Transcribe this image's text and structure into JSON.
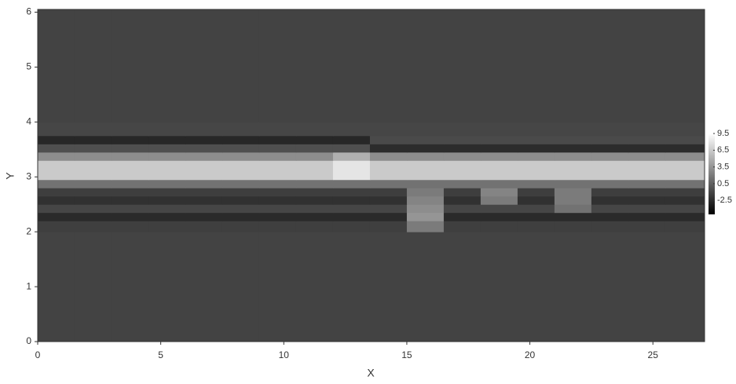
{
  "chart_data": {
    "type": "heatmap",
    "x_label": "X",
    "y_label": "Y",
    "xlim": [
      0,
      27.1
    ],
    "ylim": [
      0,
      6.05
    ],
    "xticks": [
      0,
      5,
      10,
      15,
      20,
      25
    ],
    "yticks": [
      0,
      1,
      2,
      3,
      4,
      5,
      6
    ],
    "x_edges": [
      0,
      1.5,
      3,
      4.5,
      6,
      7.5,
      9,
      10.5,
      12,
      13.5,
      15,
      16.5,
      18,
      19.5,
      21,
      22.5,
      24,
      25.5,
      27.1
    ],
    "y_edges": [
      0,
      2.0,
      2.2,
      2.35,
      2.5,
      2.65,
      2.8,
      2.95,
      3.3,
      3.45,
      3.6,
      3.75,
      4.0,
      6.05
    ],
    "colormap": "gray",
    "clim": [
      -5,
      9.5
    ],
    "colorbar_ticks": [
      9.5,
      6.5,
      3.5,
      0.5,
      -2.5
    ],
    "z": [
      [
        -1.2,
        -1.2,
        -1.2,
        -1.2,
        -1.2,
        -1.2,
        -1.2,
        -1.2,
        -1.2,
        -1.2,
        -1.2,
        -1.2,
        -1.2,
        -1.2,
        -1.2,
        -1.2,
        -1.2,
        -1.2
      ],
      [
        -1.4,
        -1.4,
        -1.4,
        -1.4,
        -1.4,
        -1.4,
        -1.4,
        -1.4,
        -1.4,
        -1.4,
        2.0,
        -1.4,
        -1.4,
        -1.4,
        -1.4,
        -1.4,
        -1.4,
        -1.4
      ],
      [
        -2.6,
        -2.6,
        -2.6,
        -2.6,
        -2.6,
        -2.6,
        -2.6,
        -2.6,
        -2.6,
        -2.6,
        3.5,
        -2.6,
        -2.6,
        -2.6,
        -2.6,
        -2.6,
        -2.6,
        -2.6
      ],
      [
        -1.0,
        -1.0,
        -1.0,
        -1.0,
        -1.0,
        -1.0,
        -1.0,
        -1.0,
        -1.0,
        -1.0,
        3.0,
        -1.0,
        -1.0,
        -1.0,
        1.5,
        -1.0,
        -1.0,
        -1.0
      ],
      [
        -2.2,
        -2.2,
        -2.2,
        -2.2,
        -2.2,
        -2.2,
        -2.2,
        -2.2,
        -2.2,
        -2.2,
        2.5,
        -2.2,
        2.0,
        -2.2,
        2.0,
        -2.2,
        -2.2,
        -2.2
      ],
      [
        -1.5,
        -1.5,
        -1.5,
        -1.5,
        -1.5,
        -1.5,
        -1.5,
        -1.5,
        -1.5,
        -1.5,
        2.0,
        -1.5,
        2.5,
        -1.5,
        2.0,
        -1.5,
        -1.5,
        -1.5
      ],
      [
        1.5,
        1.5,
        1.5,
        1.5,
        1.5,
        1.5,
        1.5,
        1.5,
        1.5,
        1.5,
        1.5,
        1.5,
        1.5,
        1.5,
        1.5,
        1.5,
        1.5,
        1.5
      ],
      [
        6.5,
        6.5,
        6.5,
        6.5,
        6.5,
        6.5,
        6.5,
        6.5,
        8.0,
        6.5,
        6.5,
        6.5,
        6.5,
        6.5,
        6.5,
        6.5,
        6.5,
        6.5
      ],
      [
        3.0,
        3.0,
        3.0,
        3.0,
        3.0,
        3.0,
        3.0,
        3.0,
        5.0,
        3.0,
        3.0,
        3.0,
        3.0,
        3.0,
        3.0,
        3.0,
        3.0,
        3.0
      ],
      [
        -0.5,
        -0.5,
        -0.5,
        -0.5,
        -0.5,
        -0.5,
        -0.5,
        -0.5,
        -0.5,
        -2.5,
        -2.5,
        -2.5,
        -2.5,
        -2.5,
        -2.5,
        -2.5,
        -2.5,
        -2.5
      ],
      [
        -2.8,
        -2.8,
        -2.8,
        -2.8,
        -2.8,
        -2.8,
        -2.8,
        -2.8,
        -2.8,
        -0.8,
        -0.8,
        -0.8,
        -0.8,
        -0.8,
        -0.8,
        -0.8,
        -0.8,
        -0.8
      ],
      [
        -1.0,
        -1.0,
        -1.0,
        -1.0,
        -1.0,
        -1.0,
        -1.0,
        -1.0,
        -1.0,
        -1.0,
        -1.0,
        -1.0,
        -1.0,
        -1.0,
        -1.0,
        -1.0,
        -1.0,
        -1.0
      ],
      [
        -1.2,
        -1.2,
        -1.2,
        -1.2,
        -1.2,
        -1.2,
        -1.2,
        -1.2,
        -1.2,
        -1.2,
        -1.2,
        -1.2,
        -1.2,
        -1.2,
        -1.2,
        -1.2,
        -1.2,
        -1.2
      ]
    ]
  }
}
